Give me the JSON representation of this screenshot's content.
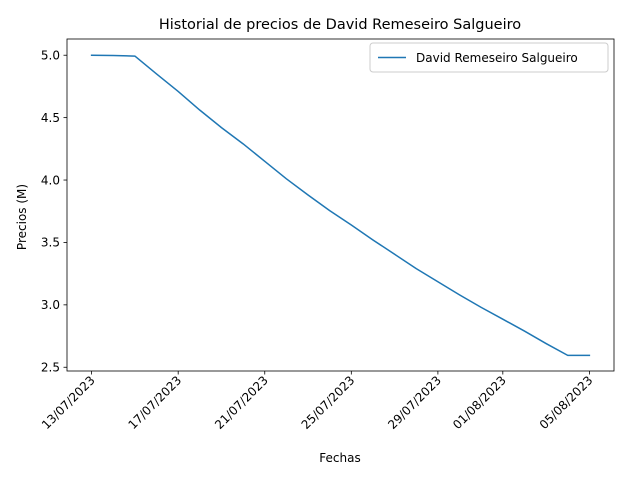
{
  "chart_data": {
    "type": "line",
    "title": "Historial de precios de David Remeseiro Salgueiro",
    "xlabel": "Fechas",
    "ylabel": "Precios (M)",
    "x": [
      "13/07/2023",
      "14/07/2023",
      "15/07/2023",
      "16/07/2023",
      "17/07/2023",
      "18/07/2023",
      "19/07/2023",
      "20/07/2023",
      "21/07/2023",
      "22/07/2023",
      "23/07/2023",
      "24/07/2023",
      "25/07/2023",
      "26/07/2023",
      "27/07/2023",
      "28/07/2023",
      "29/07/2023",
      "30/07/2023",
      "31/07/2023",
      "01/08/2023",
      "02/08/2023",
      "03/08/2023",
      "04/08/2023",
      "05/08/2023"
    ],
    "series": [
      {
        "name": "David Remeseiro Salgueiro",
        "color": "#1f77b4",
        "values": [
          5.0,
          4.998,
          4.993,
          4.85,
          4.71,
          4.56,
          4.42,
          4.29,
          4.15,
          4.01,
          3.88,
          3.755,
          3.64,
          3.52,
          3.405,
          3.29,
          3.185,
          3.08,
          2.98,
          2.885,
          2.79,
          2.69,
          2.595,
          2.595
        ]
      }
    ],
    "xticks": [
      "13/07/2023",
      "17/07/2023",
      "21/07/2023",
      "25/07/2023",
      "29/07/2023",
      "01/08/2023",
      "05/08/2023"
    ],
    "yticks": [
      "2.5",
      "3.0",
      "3.5",
      "4.0",
      "4.5",
      "5.0"
    ],
    "ylim": [
      2.47,
      5.13
    ],
    "legend_position": "top-right",
    "grid": false
  }
}
